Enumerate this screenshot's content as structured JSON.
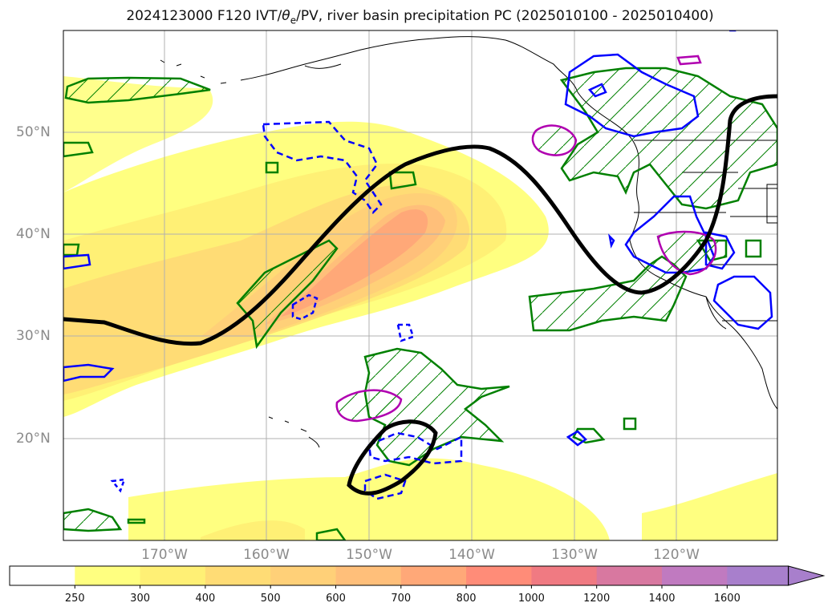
{
  "title": {
    "prefix": "2024123000 F120 IVT/",
    "theta": "θ",
    "theta_sub": "e",
    "suffix": "/PV, river basin precipitation PC (2025010100 - 2025010400)"
  },
  "axes": {
    "lat_labels": [
      "50°N",
      "40°N",
      "30°N",
      "20°N"
    ],
    "lon_labels": [
      "170°W",
      "160°W",
      "150°W",
      "140°W",
      "130°W",
      "120°W"
    ]
  },
  "colorbar": {
    "levels": [
      "250",
      "300",
      "400",
      "500",
      "600",
      "700",
      "800",
      "1000",
      "1200",
      "1400",
      "1600"
    ],
    "colors": [
      "#ffffff",
      "#ffff80",
      "#fff075",
      "#ffdc75",
      "#ffd078",
      "#ffbf7a",
      "#ffa878",
      "#ff8c78",
      "#f07a82",
      "#d878a0",
      "#c07ac0",
      "#a87fcc"
    ]
  },
  "legend_colors": {
    "pv_contour": "#000000",
    "precip_positive": "#008000",
    "precip_negative": "#0000ff",
    "theta_contour": "#b000b0"
  }
}
